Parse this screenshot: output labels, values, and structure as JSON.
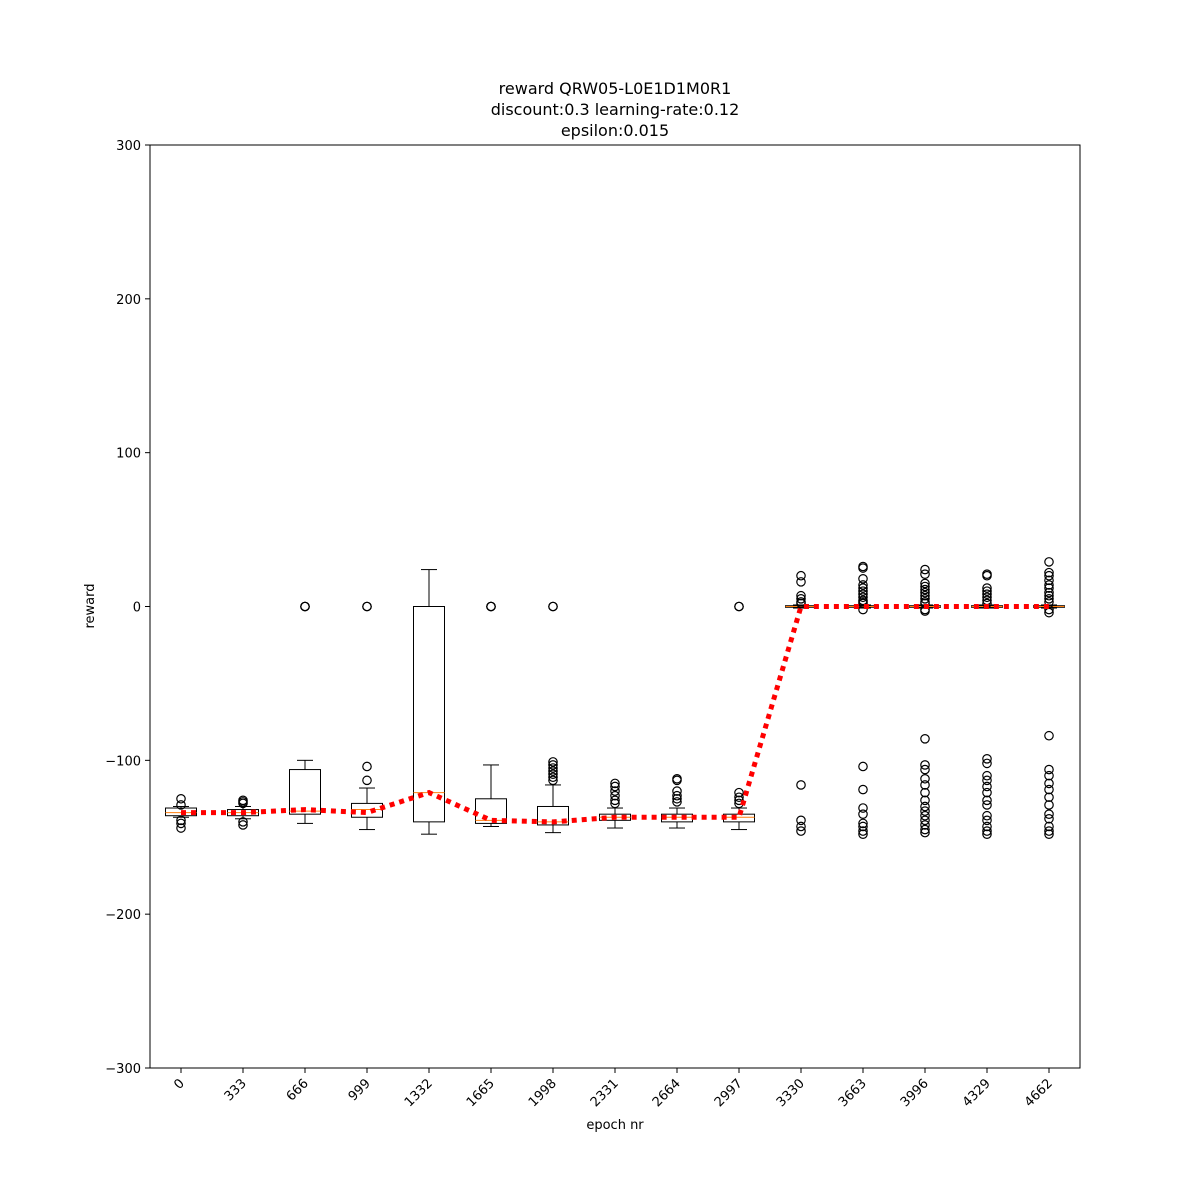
{
  "chart_data": {
    "type": "box",
    "title_lines": [
      "reward QRW05-L0E1D1M0R1",
      "discount:0.3 learning-rate:0.12",
      "epsilon:0.015"
    ],
    "xlabel": "epoch nr",
    "ylabel": "reward",
    "ylim": [
      -300,
      300
    ],
    "yticks": [
      -300,
      -200,
      -100,
      0,
      100,
      200,
      300
    ],
    "grid": false,
    "categories": [
      "0",
      "333",
      "666",
      "999",
      "1332",
      "1665",
      "1998",
      "2331",
      "2664",
      "2997",
      "3330",
      "3663",
      "3996",
      "4329",
      "4662"
    ],
    "colors": {
      "box": "#000000",
      "median": "#ff7f0e",
      "mean_line": "#ff0000"
    },
    "boxes": [
      {
        "whisker_low": -137,
        "q1": -136,
        "median": -134,
        "q3": -131,
        "whisker_high": -130,
        "outliers": [
          -125,
          -129,
          -139,
          -141,
          -144
        ]
      },
      {
        "whisker_low": -138,
        "q1": -136,
        "median": -134,
        "q3": -132,
        "whisker_high": -130,
        "outliers": [
          -126,
          -127,
          -128,
          -140,
          -142
        ]
      },
      {
        "whisker_low": -141,
        "q1": -135,
        "median": -133,
        "q3": -106,
        "whisker_high": -100,
        "outliers": [
          0,
          0,
          0
        ]
      },
      {
        "whisker_low": -145,
        "q1": -137,
        "median": -132,
        "q3": -128,
        "whisker_high": -118,
        "outliers": [
          0,
          0,
          -104,
          -113
        ]
      },
      {
        "whisker_low": -148,
        "q1": -140,
        "median": -121,
        "q3": 0,
        "whisker_high": 24,
        "outliers": []
      },
      {
        "whisker_low": -143,
        "q1": -141,
        "median": -139,
        "q3": -125,
        "whisker_high": -103,
        "outliers": [
          0,
          0,
          0
        ]
      },
      {
        "whisker_low": -147,
        "q1": -142,
        "median": -140,
        "q3": -130,
        "whisker_high": -116,
        "outliers": [
          0,
          0,
          -101,
          -103,
          -105,
          -107,
          -109,
          -111,
          -113
        ]
      },
      {
        "whisker_low": -144,
        "q1": -139,
        "median": -137,
        "q3": -135,
        "whisker_high": -131,
        "outliers": [
          -115,
          -117,
          -120,
          -123,
          -126,
          -128
        ]
      },
      {
        "whisker_low": -144,
        "q1": -140,
        "median": -137,
        "q3": -135,
        "whisker_high": -131,
        "outliers": [
          -112,
          -113,
          -120,
          -123,
          -125,
          -127
        ]
      },
      {
        "whisker_low": -145,
        "q1": -140,
        "median": -137,
        "q3": -135,
        "whisker_high": -131,
        "outliers": [
          0,
          0,
          -121,
          -124,
          -126,
          -128
        ]
      },
      {
        "whisker_low": -1,
        "q1": -0.5,
        "median": 0,
        "q3": 0.5,
        "whisker_high": 1,
        "outliers": [
          20,
          16,
          7,
          5,
          3,
          2,
          -116,
          -139,
          -143,
          -146
        ]
      },
      {
        "whisker_low": -1,
        "q1": -0.5,
        "median": 0,
        "q3": 0.5,
        "whisker_high": 1,
        "outliers": [
          26,
          25,
          18,
          14,
          12,
          10,
          8,
          6,
          4,
          3,
          2,
          -2,
          -104,
          -119,
          -131,
          -135,
          -141,
          -143,
          -146,
          -148
        ]
      },
      {
        "whisker_low": -1,
        "q1": -0.5,
        "median": 0,
        "q3": 0.5,
        "whisker_high": 1,
        "outliers": [
          24,
          21,
          15,
          13,
          11,
          9,
          7,
          5,
          3,
          2,
          -2,
          -3,
          -86,
          -103,
          -106,
          -112,
          -116,
          -121,
          -126,
          -130,
          -133,
          -136,
          -139,
          -142,
          -145,
          -147
        ]
      },
      {
        "whisker_low": -1,
        "q1": -0.5,
        "median": 0,
        "q3": 0.5,
        "whisker_high": 1,
        "outliers": [
          21,
          20,
          12,
          10,
          8,
          6,
          4,
          2,
          -99,
          -102,
          -110,
          -113,
          -117,
          -121,
          -126,
          -129,
          -136,
          -139,
          -143,
          -146,
          -148
        ]
      },
      {
        "whisker_low": -1,
        "q1": -0.5,
        "median": 0,
        "q3": 0.5,
        "whisker_high": 1,
        "outliers": [
          29,
          22,
          20,
          17,
          14,
          12,
          9,
          7,
          5,
          3,
          -2,
          -4,
          -84,
          -106,
          -110,
          -115,
          -119,
          -124,
          -129,
          -135,
          -138,
          -143,
          -146,
          -148
        ]
      }
    ],
    "mean_series": [
      -134,
      -134,
      -132,
      -134,
      -121,
      -139,
      -140,
      -137,
      -137,
      -137,
      0,
      0,
      0,
      0,
      0
    ]
  }
}
